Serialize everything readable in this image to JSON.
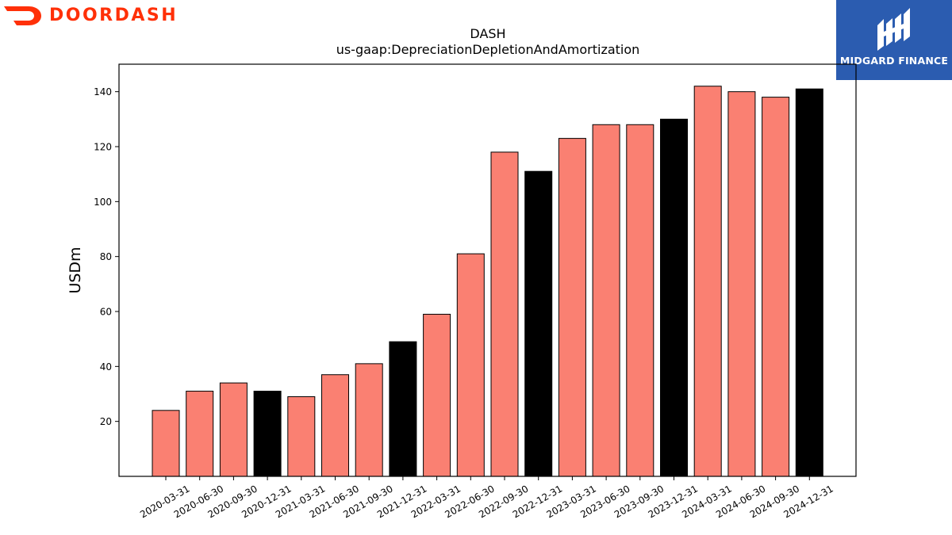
{
  "brand": {
    "name": "DOORDASH",
    "color": "#ff3008",
    "icon": "doordash-dash-icon"
  },
  "partner": {
    "name": "MIDGARD FINANCE",
    "background": "#2b5cb0",
    "icon": "midgard-finance-logo-icon"
  },
  "colors": {
    "bar_regular": "#fa8072",
    "bar_year_end": "#000000",
    "bar_edge": "#000000"
  },
  "chart_data": {
    "type": "bar",
    "title": "DASH",
    "subtitle": "us-gaap:DepreciationDepletionAndAmortization",
    "xlabel": "",
    "ylabel": "USDm",
    "ylim": [
      0,
      150
    ],
    "yticks": [
      20,
      40,
      60,
      80,
      100,
      120,
      140
    ],
    "grid": false,
    "categories": [
      "2020-03-31",
      "2020-06-30",
      "2020-09-30",
      "2020-12-31",
      "2021-03-31",
      "2021-06-30",
      "2021-09-30",
      "2021-12-31",
      "2022-03-31",
      "2022-06-30",
      "2022-09-30",
      "2022-12-31",
      "2023-03-31",
      "2023-06-30",
      "2023-09-30",
      "2023-12-31",
      "2024-03-31",
      "2024-06-30",
      "2024-09-30",
      "2024-12-31"
    ],
    "values": [
      24,
      31,
      34,
      31,
      29,
      37,
      41,
      49,
      59,
      81,
      118,
      111,
      123,
      128,
      128,
      130,
      142,
      140,
      138,
      141
    ],
    "year_end": [
      false,
      false,
      false,
      true,
      false,
      false,
      false,
      true,
      false,
      false,
      false,
      true,
      false,
      false,
      false,
      true,
      false,
      false,
      false,
      true
    ]
  }
}
